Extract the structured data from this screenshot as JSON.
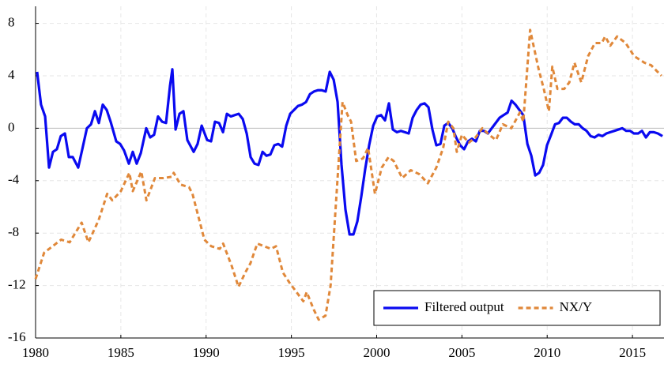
{
  "chart_data": {
    "type": "line",
    "xlim": [
      1980,
      2016.85
    ],
    "ylim": [
      -16,
      9.3
    ],
    "xticks": [
      1980,
      1985,
      1990,
      1995,
      2000,
      2005,
      2010,
      2015
    ],
    "yticks": [
      -16,
      -12,
      -8,
      -4,
      0,
      4,
      8
    ],
    "grid": true,
    "legend": "lower right",
    "series": [
      {
        "name": "Filtered output",
        "color": "#0a0af0",
        "dash": false,
        "x": [
          1980.09,
          1980.32,
          1980.56,
          1980.79,
          1981.02,
          1981.25,
          1981.48,
          1981.72,
          1981.95,
          1982.18,
          1982.5,
          1982.74,
          1983.01,
          1983.25,
          1983.48,
          1983.71,
          1983.94,
          1984.17,
          1984.4,
          1984.73,
          1984.96,
          1985.19,
          1985.47,
          1985.7,
          1985.93,
          1986.17,
          1986.49,
          1986.72,
          1986.95,
          1987.18,
          1987.42,
          1987.65,
          1987.88,
          1988.02,
          1988.21,
          1988.44,
          1988.67,
          1988.9,
          1989.27,
          1989.5,
          1989.74,
          1990.06,
          1990.29,
          1990.52,
          1990.76,
          1990.99,
          1991.22,
          1991.45,
          1991.68,
          1991.91,
          1992.15,
          1992.38,
          1992.61,
          1992.84,
          1993.07,
          1993.31,
          1993.54,
          1993.77,
          1994.0,
          1994.23,
          1994.46,
          1994.7,
          1994.93,
          1995.16,
          1995.39,
          1995.62,
          1995.86,
          1996.09,
          1996.32,
          1996.55,
          1996.78,
          1997.01,
          1997.25,
          1997.48,
          1997.71,
          1997.94,
          1998.17,
          1998.41,
          1998.64,
          1998.87,
          1999.1,
          1999.33,
          1999.56,
          1999.8,
          2000.03,
          2000.26,
          2000.49,
          2000.72,
          2000.95,
          2001.19,
          2001.42,
          2001.65,
          2001.88,
          2002.11,
          2002.35,
          2002.58,
          2002.81,
          2003.04,
          2003.27,
          2003.5,
          2003.74,
          2003.97,
          2004.2,
          2004.43,
          2004.66,
          2004.9,
          2005.13,
          2005.36,
          2005.59,
          2005.82,
          2006.05,
          2006.29,
          2006.52,
          2006.75,
          2006.98,
          2007.21,
          2007.44,
          2007.68,
          2007.91,
          2008.14,
          2008.37,
          2008.6,
          2008.84,
          2009.07,
          2009.3,
          2009.53,
          2009.76,
          2009.99,
          2010.23,
          2010.46,
          2010.69,
          2010.92,
          2011.15,
          2011.39,
          2011.62,
          2011.85,
          2012.08,
          2012.31,
          2012.55,
          2012.78,
          2013.01,
          2013.24,
          2013.47,
          2013.7,
          2013.94,
          2014.17,
          2014.4,
          2014.63,
          2014.86,
          2015.09,
          2015.33,
          2015.56,
          2015.79,
          2016.02,
          2016.25,
          2016.49,
          2016.76
        ],
        "values": [
          4.3,
          1.8,
          0.9,
          -3.0,
          -1.8,
          -1.6,
          -0.6,
          -0.4,
          -2.2,
          -2.2,
          -3.0,
          -1.6,
          0,
          0.3,
          1.3,
          0.4,
          1.8,
          1.4,
          0.5,
          -1.0,
          -1.2,
          -1.7,
          -2.7,
          -1.8,
          -2.7,
          -1.9,
          0,
          -0.7,
          -0.5,
          0.9,
          0.5,
          0.4,
          3.2,
          4.5,
          -0.1,
          1.1,
          1.3,
          -0.9,
          -1.8,
          -1.2,
          0.2,
          -0.9,
          -1.0,
          0.5,
          0.4,
          -0.3,
          1.1,
          0.9,
          1.0,
          1.1,
          0.7,
          -0.4,
          -2.2,
          -2.7,
          -2.8,
          -1.8,
          -2.1,
          -2.0,
          -1.3,
          -1.2,
          -1.4,
          0.2,
          1.1,
          1.4,
          1.7,
          1.8,
          2.0,
          2.6,
          2.8,
          2.9,
          2.9,
          2.8,
          4.3,
          3.7,
          2.0,
          -2.8,
          -6.2,
          -8.1,
          -8.1,
          -7.1,
          -5.2,
          -3.1,
          -1.3,
          0.2,
          0.9,
          1.0,
          0.6,
          1.9,
          -0.1,
          -0.3,
          -0.2,
          -0.3,
          -0.4,
          0.8,
          1.4,
          1.8,
          1.9,
          1.6,
          -0.1,
          -1.3,
          -1.2,
          0.2,
          0.4,
          0,
          -0.7,
          -1.3,
          -1.6,
          -1.0,
          -0.8,
          -1.0,
          -0.2,
          -0.2,
          -0.4,
          0,
          0.4,
          0.8,
          1.0,
          1.2,
          2.1,
          1.8,
          1.4,
          1.0,
          -1.2,
          -2.1,
          -3.6,
          -3.4,
          -2.8,
          -1.3,
          -0.5,
          0.3,
          0.4,
          0.8,
          0.8,
          0.5,
          0.3,
          0.3,
          0,
          -0.2,
          -0.6,
          -0.7,
          -0.5,
          -0.6,
          -0.4,
          -0.3,
          -0.2,
          -0.1,
          0,
          -0.2,
          -0.2,
          -0.4,
          -0.4,
          -0.2,
          -0.7,
          -0.3,
          -0.3,
          -0.4,
          -0.6
        ]
      },
      {
        "name": "NX/Y",
        "color": "#e0883a",
        "dash": true,
        "x": [
          1980.0,
          1980.5,
          1981.0,
          1981.5,
          1982.0,
          1982.7,
          1983.1,
          1983.7,
          1984.2,
          1984.5,
          1985.0,
          1985.5,
          1985.7,
          1986.2,
          1986.5,
          1987.0,
          1987.5,
          1988.0,
          1988.1,
          1988.5,
          1989.0,
          1989.2,
          1989.9,
          1990.3,
          1990.8,
          1991.0,
          1991.5,
          1991.9,
          1992.3,
          1992.6,
          1993.0,
          1993.4,
          1993.8,
          1994.1,
          1994.5,
          1994.9,
          1995.3,
          1995.7,
          1995.9,
          1996.3,
          1996.6,
          1997.0,
          1997.3,
          1997.6,
          1997.8,
          1998.0,
          1998.3,
          1998.5,
          1998.8,
          1999.2,
          1999.5,
          1999.9,
          2000.3,
          2000.7,
          2001.0,
          2001.5,
          2002.0,
          2002.5,
          2003.0,
          2003.5,
          2003.9,
          2004.2,
          2004.5,
          2004.7,
          2005.0,
          2005.4,
          2005.8,
          2006.2,
          2006.6,
          2007.0,
          2007.4,
          2007.9,
          2008.4,
          2008.6,
          2009.0,
          2009.5,
          2009.8,
          2010.1,
          2010.3,
          2010.6,
          2011.0,
          2011.3,
          2011.6,
          2012.0,
          2012.4,
          2012.8,
          2013.2,
          2013.4,
          2013.7,
          2014.1,
          2014.6,
          2015.1,
          2015.7,
          2016.1,
          2016.7
        ],
        "values": [
          -11.5,
          -9.5,
          -9.0,
          -8.5,
          -8.7,
          -7.2,
          -8.7,
          -7.0,
          -5.0,
          -5.5,
          -4.8,
          -3.4,
          -4.8,
          -3.3,
          -5.5,
          -3.8,
          -3.8,
          -3.7,
          -3.4,
          -4.3,
          -4.5,
          -5.0,
          -8.5,
          -9.0,
          -9.2,
          -8.8,
          -10.5,
          -12.1,
          -11.0,
          -10.3,
          -8.8,
          -9.0,
          -9.2,
          -9.0,
          -11.0,
          -11.8,
          -12.5,
          -13.2,
          -12.5,
          -13.8,
          -14.6,
          -14.3,
          -12.0,
          -6.0,
          -2.0,
          2.0,
          1.0,
          0.5,
          -2.5,
          -2.3,
          -1.5,
          -5.0,
          -3.0,
          -2.2,
          -2.5,
          -3.8,
          -3.2,
          -3.5,
          -4.2,
          -3.0,
          -1.5,
          0.5,
          0,
          -1.8,
          -0.5,
          -1.1,
          -0.7,
          0,
          -0.5,
          -0.9,
          0.3,
          0,
          1.2,
          0.5,
          7.5,
          4.5,
          3.0,
          1.3,
          4.7,
          3.0,
          3.0,
          3.5,
          5.0,
          3.5,
          5.5,
          6.5,
          6.5,
          7.0,
          6.3,
          7.0,
          6.5,
          5.5,
          5.0,
          4.8,
          4.0
        ]
      }
    ]
  }
}
